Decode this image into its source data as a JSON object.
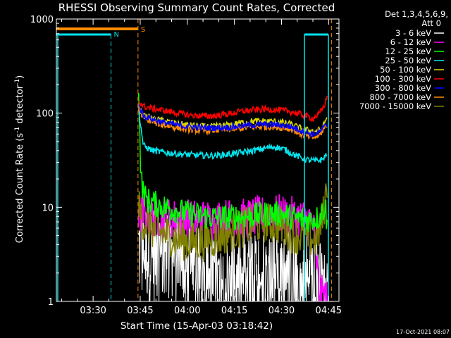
{
  "chart_data": {
    "type": "line",
    "title": "RHESSI Observing Summary Count Rates, Corrected",
    "xlabel": "Start Time (15-Apr-03 03:18:42)",
    "ylabel": "Corrected Count Rate (s",
    "ylabel_sup1": "-1",
    "ylabel_mid": " detector",
    "ylabel_sup2": "-1",
    "ylabel_end": ")",
    "footer_date": "17-Oct-2021 08:07",
    "yscale": "log",
    "ylim": [
      1,
      1000
    ],
    "xlim_minutes": [
      3.3,
      93.3
    ],
    "x_ticks": [
      {
        "m": 15,
        "label": "03:30"
      },
      {
        "m": 30,
        "label": "03:45"
      },
      {
        "m": 45,
        "label": "04:00"
      },
      {
        "m": 60,
        "label": "04:15"
      },
      {
        "m": 75,
        "label": "04:30"
      },
      {
        "m": 90,
        "label": "04:45"
      }
    ],
    "y_ticks": [
      {
        "v": 1,
        "label": "1"
      },
      {
        "v": 10,
        "label": "10"
      },
      {
        "v": 100,
        "label": "100"
      },
      {
        "v": 1000,
        "label": "1000"
      }
    ],
    "legend_header": [
      "Det 1,3,4,5,6,9,",
      "Att 0"
    ],
    "legend_position": "right",
    "flags": [
      {
        "name": "S",
        "color": "#ff8c00"
      },
      {
        "name": "N",
        "color": "#00e5ee"
      }
    ],
    "series": [
      {
        "name": "3 - 6 keV",
        "color": "#000000",
        "start": 29.5,
        "end": 89.7,
        "pts": [
          [
            29.5,
            3.6
          ],
          [
            34,
            3.3
          ],
          [
            38,
            3.2
          ],
          [
            42,
            2.6
          ],
          [
            46,
            2.1
          ],
          [
            50,
            1.6
          ],
          [
            54,
            1.5
          ],
          [
            58,
            1.4
          ],
          [
            62,
            1.4
          ],
          [
            66,
            1.5
          ],
          [
            70,
            1.7
          ],
          [
            74,
            1.8
          ],
          [
            78,
            1.6
          ],
          [
            82,
            1.4
          ],
          [
            86,
            1.3
          ],
          [
            89.7,
            1.2
          ]
        ]
      },
      {
        "name": "6 - 12 keV",
        "color": "#ff00ff",
        "start": 29.5,
        "end": 89.7,
        "pts": [
          [
            29.5,
            8.6
          ],
          [
            34,
            8.0
          ],
          [
            40,
            7.6
          ],
          [
            46,
            7.5
          ],
          [
            52,
            7.4
          ],
          [
            58,
            7.6
          ],
          [
            62,
            7.5
          ],
          [
            68,
            8.0
          ],
          [
            74,
            8.4
          ],
          [
            78,
            8.0
          ],
          [
            82,
            7.6
          ],
          [
            85,
            7.2
          ],
          [
            87,
            1.2
          ],
          [
            89.7,
            1.1
          ]
        ]
      },
      {
        "name": "12 - 25 keV",
        "color": "#00ff00",
        "start": 29.5,
        "end": 89.7,
        "pts": [
          [
            29.5,
            210
          ],
          [
            30,
            36
          ],
          [
            30.6,
            16
          ],
          [
            32,
            12
          ],
          [
            36,
            10.5
          ],
          [
            40,
            9.5
          ],
          [
            44,
            8.8
          ],
          [
            48,
            8.3
          ],
          [
            52,
            7.8
          ],
          [
            56,
            7.8
          ],
          [
            60,
            7.9
          ],
          [
            64,
            8.0
          ],
          [
            68,
            8.3
          ],
          [
            72,
            8.6
          ],
          [
            76,
            8.3
          ],
          [
            80,
            7.6
          ],
          [
            84,
            7.4
          ],
          [
            87,
            7.8
          ],
          [
            89,
            10.5
          ],
          [
            89.7,
            5
          ]
        ]
      },
      {
        "name": "25 - 50 keV",
        "color": "#00e5ee",
        "start": 29.5,
        "end": 89.7,
        "pts": [
          [
            29.5,
            110
          ],
          [
            31,
            45
          ],
          [
            34,
            40
          ],
          [
            38,
            38
          ],
          [
            42,
            37
          ],
          [
            46,
            36
          ],
          [
            50,
            35.5
          ],
          [
            54,
            35.5
          ],
          [
            58,
            36.5
          ],
          [
            62,
            38
          ],
          [
            66,
            40
          ],
          [
            70,
            42.5
          ],
          [
            73,
            44
          ],
          [
            76,
            41
          ],
          [
            80,
            35
          ],
          [
            83,
            32
          ],
          [
            86,
            31
          ],
          [
            88,
            32
          ],
          [
            89.7,
            38
          ]
        ]
      },
      {
        "name": "50 - 100 keV",
        "color": "#dddd00",
        "start": 29.5,
        "end": 89.7,
        "pts": [
          [
            29.5,
            115
          ],
          [
            31,
            94
          ],
          [
            34,
            87
          ],
          [
            38,
            82
          ],
          [
            42,
            77
          ],
          [
            46,
            74
          ],
          [
            50,
            72
          ],
          [
            54,
            72
          ],
          [
            58,
            74
          ],
          [
            62,
            79
          ],
          [
            66,
            82
          ],
          [
            70,
            82
          ],
          [
            74,
            81
          ],
          [
            78,
            76
          ],
          [
            82,
            67
          ],
          [
            86,
            64
          ],
          [
            88,
            68
          ],
          [
            89.7,
            95
          ]
        ]
      },
      {
        "name": "100 - 300 keV",
        "color": "#ff0000",
        "start": 29.5,
        "end": 89.7,
        "pts": [
          [
            29.5,
            135
          ],
          [
            31,
            118
          ],
          [
            34,
            112
          ],
          [
            38,
            106
          ],
          [
            42,
            100
          ],
          [
            46,
            95
          ],
          [
            50,
            93
          ],
          [
            54,
            94
          ],
          [
            58,
            98
          ],
          [
            62,
            104
          ],
          [
            66,
            108
          ],
          [
            70,
            110
          ],
          [
            74,
            108
          ],
          [
            78,
            104
          ],
          [
            82,
            95
          ],
          [
            85,
            88
          ],
          [
            87,
            98
          ],
          [
            88.5,
            118
          ],
          [
            89.7,
            155
          ]
        ]
      },
      {
        "name": "300 - 800 keV",
        "color": "#0000ff",
        "start": 29.5,
        "end": 89.7,
        "pts": [
          [
            29.5,
            122
          ],
          [
            31,
            94
          ],
          [
            34,
            86
          ],
          [
            38,
            79
          ],
          [
            42,
            74
          ],
          [
            46,
            72
          ],
          [
            50,
            70
          ],
          [
            54,
            70
          ],
          [
            58,
            71
          ],
          [
            62,
            73
          ],
          [
            66,
            75
          ],
          [
            70,
            76
          ],
          [
            74,
            75
          ],
          [
            78,
            72
          ],
          [
            82,
            64
          ],
          [
            85,
            60
          ],
          [
            87,
            62
          ],
          [
            89.7,
            78
          ]
        ]
      },
      {
        "name": "800 - 7000 keV",
        "color": "#ff8c00",
        "start": 29.5,
        "end": 89.7,
        "pts": [
          [
            29.5,
            112
          ],
          [
            31,
            90
          ],
          [
            34,
            80
          ],
          [
            38,
            74
          ],
          [
            42,
            70
          ],
          [
            46,
            67
          ],
          [
            50,
            65
          ],
          [
            54,
            66
          ],
          [
            58,
            67
          ],
          [
            62,
            69
          ],
          [
            66,
            71
          ],
          [
            70,
            72
          ],
          [
            74,
            71
          ],
          [
            78,
            68
          ],
          [
            82,
            58
          ],
          [
            85,
            55
          ],
          [
            87,
            58
          ],
          [
            89.7,
            76
          ]
        ]
      },
      {
        "name": "7000 - 15000 keV",
        "color": "#808000",
        "start": 29.5,
        "end": 89.7,
        "pts": [
          [
            29.5,
            9.8
          ],
          [
            31,
            7.2
          ],
          [
            34,
            5.8
          ],
          [
            38,
            5.2
          ],
          [
            42,
            4.6
          ],
          [
            46,
            4.3
          ],
          [
            50,
            4.4
          ],
          [
            54,
            4.8
          ],
          [
            58,
            5.3
          ],
          [
            62,
            6.0
          ],
          [
            66,
            6.6
          ],
          [
            70,
            6.9
          ],
          [
            74,
            6.6
          ],
          [
            78,
            5.4
          ],
          [
            82,
            4.8
          ],
          [
            86,
            4.6
          ],
          [
            88,
            7
          ],
          [
            89.3,
            15
          ],
          [
            89.7,
            22
          ]
        ]
      }
    ]
  }
}
